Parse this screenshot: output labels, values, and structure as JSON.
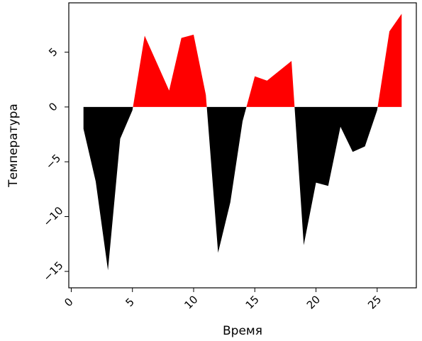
{
  "chart_data": {
    "type": "area",
    "title": "",
    "xlabel": "Время",
    "ylabel": "Температура",
    "xlim": [
      -0.2,
      28.2
    ],
    "ylim": [
      -16.5,
      9.5
    ],
    "xticks": [
      0,
      5,
      10,
      15,
      20,
      25
    ],
    "yticks": [
      -15,
      -10,
      -5,
      0,
      5
    ],
    "grid": false,
    "legend": "none",
    "x": [
      1,
      2,
      3,
      4,
      5,
      6,
      7,
      8,
      9,
      10,
      11,
      12,
      13,
      14,
      15,
      16,
      17,
      18,
      19,
      20,
      21,
      22,
      23,
      24,
      25,
      26,
      27
    ],
    "y": [
      -2.0,
      -6.8,
      -14.9,
      -2.9,
      -0.3,
      6.5,
      4.0,
      1.5,
      6.3,
      6.6,
      1.1,
      -13.3,
      -8.7,
      -1.3,
      2.8,
      2.4,
      3.3,
      4.2,
      -12.6,
      -6.9,
      -7.2,
      -1.8,
      -4.1,
      -3.6,
      -0.3,
      6.9,
      8.5
    ],
    "fill_positive": "#ff0000",
    "fill_negative": "#000000",
    "baseline": 0
  }
}
